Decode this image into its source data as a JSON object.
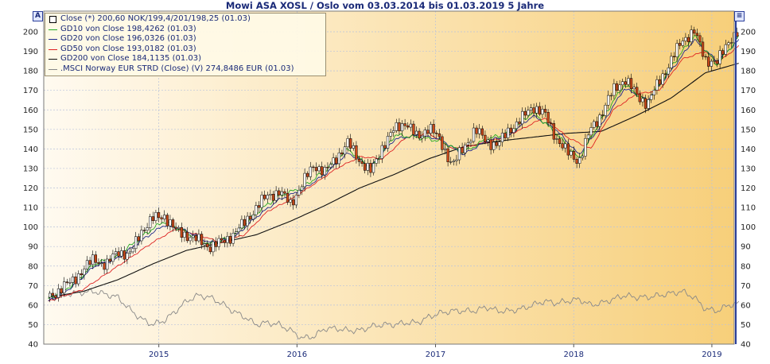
{
  "title": "Mowi ASA XOSL / Oslo vom 03.03.2014 bis 01.03.2019 5 Jahre",
  "buttons": {
    "left": "A",
    "right": "≡"
  },
  "colors": {
    "background_left": "#fffaf0",
    "background_right": "#f7cf7a",
    "close": "#000000",
    "gd10": "#22aa22",
    "gd20": "#1e2a8a",
    "gd50": "#dd2222",
    "gd200": "#111111",
    "msci": "#888888",
    "up_candle": "#ffffff",
    "down_candle": "#cc4a1a"
  },
  "legend": [
    {
      "key": "close",
      "label": "Close (*) 200,60 NOK/199,4/201/198,25 (01.03)"
    },
    {
      "key": "gd10",
      "label": "GD10 von Close 198,4262 (01.03)"
    },
    {
      "key": "gd20",
      "label": "GD20 von Close 196,0326 (01.03)"
    },
    {
      "key": "gd50",
      "label": "GD50 von Close 193,0182 (01.03)"
    },
    {
      "key": "gd200",
      "label": "GD200 von Close 184,1135 (01.03)"
    },
    {
      "key": "msci",
      "label": ".MSCI Norway EUR STRD (Close) (V) 274,8486 EUR (01.03)"
    }
  ],
  "chart_data": {
    "type": "line",
    "x_range": [
      "2014-03-03",
      "2019-03-01"
    ],
    "ylim": [
      40,
      205
    ],
    "y_ticks": [
      40,
      50,
      60,
      70,
      80,
      90,
      100,
      110,
      120,
      130,
      140,
      150,
      160,
      170,
      180,
      190,
      200
    ],
    "y_ticks_right": [
      40,
      50,
      60,
      70,
      80,
      90,
      100,
      110,
      120,
      130,
      140,
      150,
      160,
      170,
      180,
      190,
      200
    ],
    "x_ticks": [
      "2015",
      "2016",
      "2017",
      "2018",
      "2019"
    ],
    "grid": true,
    "legend_position": "top-left",
    "series": [
      {
        "key": "close",
        "style": "candlestick",
        "points": [
          [
            "2014-03",
            64
          ],
          [
            "2014-04",
            68
          ],
          [
            "2014-05",
            72
          ],
          [
            "2014-06",
            78
          ],
          [
            "2014-07",
            84
          ],
          [
            "2014-08",
            80
          ],
          [
            "2014-09",
            88
          ],
          [
            "2014-10",
            85
          ],
          [
            "2014-11",
            98
          ],
          [
            "2014-12",
            104
          ],
          [
            "2015-01",
            106
          ],
          [
            "2015-02",
            98
          ],
          [
            "2015-03",
            96
          ],
          [
            "2015-04",
            93
          ],
          [
            "2015-05",
            90
          ],
          [
            "2015-06",
            92
          ],
          [
            "2015-07",
            96
          ],
          [
            "2015-08",
            102
          ],
          [
            "2015-09",
            110
          ],
          [
            "2015-10",
            116
          ],
          [
            "2015-11",
            118
          ],
          [
            "2015-12",
            112
          ],
          [
            "2016-01",
            122
          ],
          [
            "2016-02",
            132
          ],
          [
            "2016-03",
            128
          ],
          [
            "2016-04",
            136
          ],
          [
            "2016-05",
            143
          ],
          [
            "2016-06",
            134
          ],
          [
            "2016-07",
            128
          ],
          [
            "2016-08",
            142
          ],
          [
            "2016-09",
            150
          ],
          [
            "2016-10",
            154
          ],
          [
            "2016-11",
            145
          ],
          [
            "2016-12",
            152
          ],
          [
            "2017-01",
            143
          ],
          [
            "2017-02",
            132
          ],
          [
            "2017-03",
            140
          ],
          [
            "2017-04",
            150
          ],
          [
            "2017-05",
            144
          ],
          [
            "2017-06",
            142
          ],
          [
            "2017-07",
            150
          ],
          [
            "2017-08",
            155
          ],
          [
            "2017-09",
            162
          ],
          [
            "2017-10",
            158
          ],
          [
            "2017-11",
            146
          ],
          [
            "2017-12",
            138
          ],
          [
            "2018-01",
            134
          ],
          [
            "2018-02",
            150
          ],
          [
            "2018-03",
            158
          ],
          [
            "2018-04",
            170
          ],
          [
            "2018-05",
            176
          ],
          [
            "2018-06",
            168
          ],
          [
            "2018-07",
            163
          ],
          [
            "2018-08",
            175
          ],
          [
            "2018-09",
            185
          ],
          [
            "2018-10",
            196
          ],
          [
            "2018-11",
            200
          ],
          [
            "2018-12",
            186
          ],
          [
            "2019-01",
            184
          ],
          [
            "2019-02",
            196
          ],
          [
            "2019-03",
            200
          ]
        ]
      },
      {
        "key": "gd10",
        "style": "line",
        "points": [
          [
            "2014-03",
            63
          ],
          [
            "2014-05",
            70
          ],
          [
            "2014-07",
            81
          ],
          [
            "2014-09",
            85
          ],
          [
            "2014-11",
            95
          ],
          [
            "2015-01",
            103
          ],
          [
            "2015-03",
            97
          ],
          [
            "2015-05",
            91
          ],
          [
            "2015-07",
            95
          ],
          [
            "2015-09",
            107
          ],
          [
            "2015-11",
            116
          ],
          [
            "2016-01",
            120
          ],
          [
            "2016-03",
            129
          ],
          [
            "2016-05",
            140
          ],
          [
            "2016-07",
            130
          ],
          [
            "2016-09",
            147
          ],
          [
            "2016-11",
            146
          ],
          [
            "2017-01",
            144
          ],
          [
            "2017-03",
            138
          ],
          [
            "2017-05",
            145
          ],
          [
            "2017-07",
            148
          ],
          [
            "2017-09",
            159
          ],
          [
            "2017-11",
            148
          ],
          [
            "2018-01",
            135
          ],
          [
            "2018-03",
            155
          ],
          [
            "2018-05",
            173
          ],
          [
            "2018-07",
            164
          ],
          [
            "2018-09",
            182
          ],
          [
            "2018-11",
            198
          ],
          [
            "2019-01",
            183
          ],
          [
            "2019-03",
            198
          ]
        ]
      },
      {
        "key": "gd20",
        "style": "line",
        "points": [
          [
            "2014-03",
            62
          ],
          [
            "2014-05",
            69
          ],
          [
            "2014-07",
            80
          ],
          [
            "2014-09",
            84
          ],
          [
            "2014-11",
            93
          ],
          [
            "2015-01",
            101
          ],
          [
            "2015-03",
            98
          ],
          [
            "2015-05",
            92
          ],
          [
            "2015-07",
            94
          ],
          [
            "2015-09",
            105
          ],
          [
            "2015-11",
            114
          ],
          [
            "2016-01",
            119
          ],
          [
            "2016-03",
            127
          ],
          [
            "2016-05",
            138
          ],
          [
            "2016-07",
            131
          ],
          [
            "2016-09",
            145
          ],
          [
            "2016-11",
            147
          ],
          [
            "2017-01",
            145
          ],
          [
            "2017-03",
            137
          ],
          [
            "2017-05",
            144
          ],
          [
            "2017-07",
            147
          ],
          [
            "2017-09",
            157
          ],
          [
            "2017-11",
            150
          ],
          [
            "2018-01",
            137
          ],
          [
            "2018-03",
            152
          ],
          [
            "2018-05",
            171
          ],
          [
            "2018-07",
            165
          ],
          [
            "2018-09",
            180
          ],
          [
            "2018-11",
            196
          ],
          [
            "2019-01",
            185
          ],
          [
            "2019-03",
            196
          ]
        ]
      },
      {
        "key": "gd50",
        "style": "line",
        "points": [
          [
            "2014-03",
            62
          ],
          [
            "2014-06",
            68
          ],
          [
            "2014-09",
            80
          ],
          [
            "2014-12",
            92
          ],
          [
            "2015-02",
            99
          ],
          [
            "2015-04",
            96
          ],
          [
            "2015-06",
            92
          ],
          [
            "2015-08",
            96
          ],
          [
            "2015-10",
            108
          ],
          [
            "2015-12",
            114
          ],
          [
            "2016-02",
            122
          ],
          [
            "2016-04",
            130
          ],
          [
            "2016-06",
            136
          ],
          [
            "2016-08",
            135
          ],
          [
            "2016-10",
            146
          ],
          [
            "2016-12",
            148
          ],
          [
            "2017-02",
            140
          ],
          [
            "2017-04",
            142
          ],
          [
            "2017-06",
            145
          ],
          [
            "2017-08",
            150
          ],
          [
            "2017-10",
            156
          ],
          [
            "2017-12",
            146
          ],
          [
            "2018-02",
            140
          ],
          [
            "2018-04",
            160
          ],
          [
            "2018-06",
            168
          ],
          [
            "2018-08",
            170
          ],
          [
            "2018-10",
            186
          ],
          [
            "2018-12",
            190
          ],
          [
            "2019-01",
            184
          ],
          [
            "2019-03",
            193
          ]
        ]
      },
      {
        "key": "gd200",
        "style": "line",
        "points": [
          [
            "2014-03",
            64
          ],
          [
            "2014-06",
            67
          ],
          [
            "2014-09",
            73
          ],
          [
            "2014-12",
            81
          ],
          [
            "2015-03",
            88
          ],
          [
            "2015-06",
            92
          ],
          [
            "2015-09",
            96
          ],
          [
            "2015-12",
            103
          ],
          [
            "2016-03",
            111
          ],
          [
            "2016-06",
            120
          ],
          [
            "2016-09",
            127
          ],
          [
            "2016-12",
            135
          ],
          [
            "2017-03",
            141
          ],
          [
            "2017-06",
            144
          ],
          [
            "2017-09",
            146
          ],
          [
            "2017-12",
            148
          ],
          [
            "2018-03",
            149
          ],
          [
            "2018-06",
            157
          ],
          [
            "2018-09",
            166
          ],
          [
            "2018-12",
            179
          ],
          [
            "2019-03",
            184
          ]
        ]
      },
      {
        "key": "msci",
        "style": "line",
        "points": [
          [
            "2014-03",
            63
          ],
          [
            "2014-05",
            66
          ],
          [
            "2014-07",
            67
          ],
          [
            "2014-09",
            64
          ],
          [
            "2014-10",
            58
          ],
          [
            "2014-11",
            53
          ],
          [
            "2014-12",
            50
          ],
          [
            "2015-01",
            52
          ],
          [
            "2015-02",
            57
          ],
          [
            "2015-03",
            62
          ],
          [
            "2015-04",
            65
          ],
          [
            "2015-05",
            64
          ],
          [
            "2015-06",
            61
          ],
          [
            "2015-07",
            57
          ],
          [
            "2015-08",
            54
          ],
          [
            "2015-09",
            50
          ],
          [
            "2015-10",
            51
          ],
          [
            "2015-11",
            50
          ],
          [
            "2015-12",
            47
          ],
          [
            "2016-01",
            43
          ],
          [
            "2016-02",
            44
          ],
          [
            "2016-03",
            48
          ],
          [
            "2016-04",
            48
          ],
          [
            "2016-05",
            47
          ],
          [
            "2016-06",
            47
          ],
          [
            "2016-07",
            49
          ],
          [
            "2016-08",
            50
          ],
          [
            "2016-09",
            50
          ],
          [
            "2016-10",
            51
          ],
          [
            "2016-11",
            51
          ],
          [
            "2016-12",
            54
          ],
          [
            "2017-01",
            56
          ],
          [
            "2017-02",
            57
          ],
          [
            "2017-03",
            57
          ],
          [
            "2017-04",
            57
          ],
          [
            "2017-05",
            59
          ],
          [
            "2017-06",
            57
          ],
          [
            "2017-07",
            57
          ],
          [
            "2017-08",
            58
          ],
          [
            "2017-09",
            60
          ],
          [
            "2017-10",
            62
          ],
          [
            "2017-11",
            61
          ],
          [
            "2017-12",
            62
          ],
          [
            "2018-01",
            63
          ],
          [
            "2018-02",
            60
          ],
          [
            "2018-03",
            61
          ],
          [
            "2018-04",
            63
          ],
          [
            "2018-05",
            65
          ],
          [
            "2018-06",
            64
          ],
          [
            "2018-07",
            64
          ],
          [
            "2018-08",
            65
          ],
          [
            "2018-09",
            66
          ],
          [
            "2018-10",
            67
          ],
          [
            "2018-11",
            64
          ],
          [
            "2018-12",
            58
          ],
          [
            "2019-01",
            57
          ],
          [
            "2019-02",
            60
          ],
          [
            "2019-03",
            61
          ]
        ]
      }
    ]
  }
}
